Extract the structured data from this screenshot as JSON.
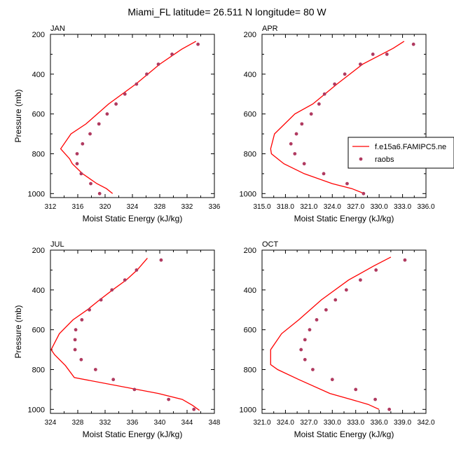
{
  "figure_title": "Miami_FL  latitude= 26.511 N longitude= 80 W",
  "colors": {
    "model": "#ff0000",
    "obs": "#b03a60",
    "axis": "#000000"
  },
  "legend": {
    "entries": [
      "f.e15a6.FAMIPC5.ne",
      "raobs"
    ],
    "panel_index": 1
  },
  "chart_data": [
    {
      "type": "line",
      "title": "JAN",
      "xlabel": "Moist Static Energy (kJ/kg)",
      "ylabel": "Pressure (mb)",
      "xlim": [
        312,
        336
      ],
      "ylim": [
        1020,
        200
      ],
      "xticks": [
        312,
        316,
        320,
        324,
        328,
        332,
        336
      ],
      "xticklabels": [
        "312",
        "316",
        "320",
        "324",
        "328",
        "332",
        "336"
      ],
      "yticks": [
        200,
        400,
        600,
        800,
        1000
      ],
      "series": [
        {
          "name": "f.e15a6.FAMIPC5.ne",
          "kind": "line",
          "x": [
            321.1,
            320.2,
            318.8,
            316.7,
            315.2,
            314.8,
            313.5,
            315.0,
            317.2,
            320.5,
            324.5,
            328.0,
            331.2,
            333.3
          ],
          "y": [
            1000,
            975,
            950,
            900,
            850,
            825,
            775,
            700,
            650,
            550,
            450,
            350,
            275,
            235
          ]
        },
        {
          "name": "raobs",
          "kind": "scatter",
          "x": [
            319.2,
            317.9,
            316.5,
            315.9,
            315.9,
            316.7,
            317.8,
            319.1,
            320.3,
            321.6,
            322.9,
            324.6,
            326.1,
            327.8,
            329.8,
            333.6
          ],
          "y": [
            1000,
            950,
            900,
            850,
            800,
            750,
            700,
            650,
            600,
            550,
            500,
            450,
            400,
            350,
            300,
            250
          ]
        }
      ]
    },
    {
      "type": "line",
      "title": "APR",
      "xlabel": "Moist Static Energy (kJ/kg)",
      "ylabel": "Pressure (mb)",
      "xlim": [
        315,
        336
      ],
      "ylim": [
        1020,
        200
      ],
      "xticks": [
        315,
        318,
        321,
        324,
        327,
        330,
        333,
        336
      ],
      "xticklabels": [
        "315.0",
        "318.0",
        "321.0",
        "324.0",
        "327.0",
        "330.0",
        "333.0",
        "336.0"
      ],
      "yticks": [
        200,
        400,
        600,
        800,
        1000
      ],
      "series": [
        {
          "name": "f.e15a6.FAMIPC5.ne",
          "kind": "line",
          "x": [
            328.1,
            326.5,
            324.0,
            320.4,
            317.8,
            316.2,
            316.1,
            316.6,
            319.2,
            321.5,
            324.6,
            327.9,
            331.8,
            333.2
          ],
          "y": [
            1000,
            975,
            950,
            900,
            850,
            800,
            775,
            700,
            600,
            550,
            450,
            350,
            270,
            235
          ]
        },
        {
          "name": "raobs",
          "kind": "scatter",
          "x": [
            328.0,
            325.9,
            322.9,
            320.4,
            319.2,
            318.7,
            319.4,
            320.1,
            321.3,
            322.3,
            323.0,
            324.3,
            325.6,
            327.6,
            329.2,
            331.0,
            334.4
          ],
          "y": [
            1000,
            950,
            900,
            850,
            800,
            750,
            700,
            650,
            600,
            550,
            500,
            450,
            400,
            350,
            300,
            300,
            250
          ]
        }
      ]
    },
    {
      "type": "line",
      "title": "JUL",
      "xlabel": "Moist Static Energy (kJ/kg)",
      "ylabel": "Pressure (mb)",
      "xlim": [
        324,
        348
      ],
      "ylim": [
        1020,
        200
      ],
      "xticks": [
        324,
        328,
        332,
        336,
        340,
        344,
        348
      ],
      "xticklabels": [
        "324",
        "328",
        "332",
        "336",
        "340",
        "344",
        "348"
      ],
      "yticks": [
        200,
        400,
        600,
        800,
        1000
      ],
      "series": [
        {
          "name": "f.e15a6.FAMIPC5.ne",
          "kind": "line",
          "x": [
            345.8,
            344.8,
            343.3,
            339.8,
            327.5,
            326.2,
            324.6,
            324.1,
            325.3,
            327.3,
            329.4,
            331.2,
            333.1,
            335.1,
            336.7,
            338.2
          ],
          "y": [
            1005,
            980,
            950,
            920,
            840,
            780,
            725,
            700,
            620,
            550,
            500,
            450,
            400,
            350,
            300,
            240
          ]
        },
        {
          "name": "raobs",
          "kind": "scatter",
          "x": [
            345.0,
            341.3,
            336.3,
            333.2,
            330.6,
            328.5,
            327.6,
            327.6,
            327.7,
            328.6,
            329.7,
            331.4,
            333.0,
            334.9,
            336.6,
            340.2
          ],
          "y": [
            1000,
            950,
            900,
            850,
            800,
            750,
            700,
            650,
            600,
            550,
            500,
            450,
            400,
            350,
            300,
            250
          ]
        }
      ]
    },
    {
      "type": "line",
      "title": "OCT",
      "xlabel": "Moist Static Energy (kJ/kg)",
      "ylabel": "Pressure (mb)",
      "xlim": [
        321,
        342
      ],
      "ylim": [
        1020,
        200
      ],
      "xticks": [
        321,
        324,
        327,
        330,
        333,
        336,
        339,
        342
      ],
      "xticklabels": [
        "321.0",
        "324.0",
        "327.0",
        "330.0",
        "333.0",
        "336.0",
        "339.0",
        "342.0"
      ],
      "yticks": [
        200,
        400,
        600,
        800,
        1000
      ],
      "series": [
        {
          "name": "f.e15a6.FAMIPC5.ne",
          "kind": "line",
          "x": [
            336.0,
            334.6,
            332.4,
            329.7,
            325.7,
            323.0,
            322.1,
            322.1,
            323.5,
            325.7,
            328.6,
            332.1,
            335.3,
            337.5
          ],
          "y": [
            1000,
            975,
            950,
            920,
            850,
            800,
            775,
            700,
            620,
            550,
            450,
            350,
            280,
            235
          ]
        },
        {
          "name": "raobs",
          "kind": "scatter",
          "x": [
            337.3,
            335.5,
            333.0,
            330.0,
            327.5,
            326.5,
            326.0,
            326.5,
            327.1,
            328.0,
            329.2,
            330.4,
            331.8,
            333.6,
            335.6,
            339.3
          ],
          "y": [
            1000,
            950,
            900,
            850,
            800,
            750,
            700,
            650,
            600,
            550,
            500,
            450,
            400,
            350,
            300,
            250
          ]
        }
      ]
    }
  ]
}
